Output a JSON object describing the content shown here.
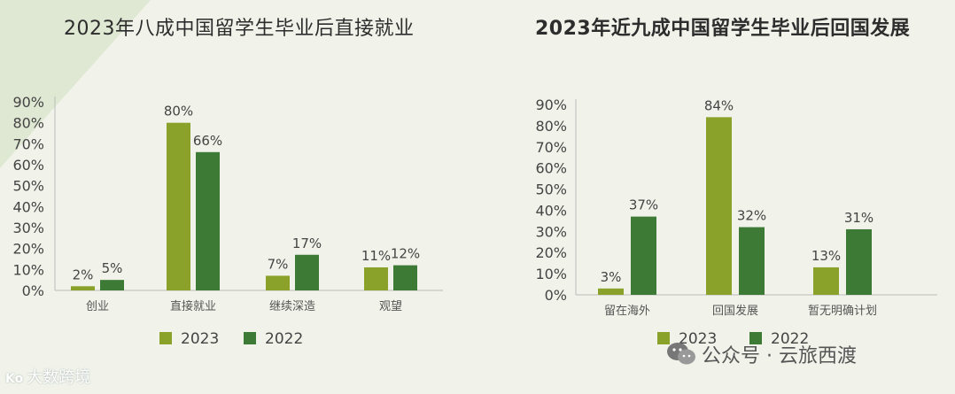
{
  "chart_data": [
    {
      "type": "bar",
      "title": "2023年八成中国留学生毕业后直接就业",
      "categories": [
        "创业",
        "直接就业",
        "继续深造",
        "观望"
      ],
      "series": [
        {
          "name": "2023",
          "values": [
            2,
            80,
            7,
            11
          ],
          "color": "#8aa12a"
        },
        {
          "name": "2022",
          "values": [
            5,
            66,
            17,
            12
          ],
          "color": "#3d7a35"
        }
      ],
      "data_labels": [
        [
          "2%",
          "80%",
          "7%",
          "11%"
        ],
        [
          "5%",
          "66%",
          "17%",
          "12%"
        ]
      ],
      "yticks": [
        "0%",
        "10%",
        "20%",
        "30%",
        "40%",
        "50%",
        "60%",
        "70%",
        "80%",
        "90%"
      ],
      "ylim": [
        0,
        90
      ],
      "xlabel": "",
      "ylabel": "",
      "legend": "bottom"
    },
    {
      "type": "bar",
      "title": "2023年近九成中国留学生毕业后回国发展",
      "categories": [
        "留在海外",
        "回国发展",
        "暂无明确计划"
      ],
      "series": [
        {
          "name": "2023",
          "values": [
            3,
            84,
            13
          ],
          "color": "#8aa12a"
        },
        {
          "name": "2022",
          "values": [
            37,
            32,
            31
          ],
          "color": "#3d7a35"
        }
      ],
      "data_labels": [
        [
          "3%",
          "84%",
          "13%"
        ],
        [
          "37%",
          "32%",
          "31%"
        ]
      ],
      "yticks": [
        "0%",
        "10%",
        "20%",
        "30%",
        "40%",
        "50%",
        "60%",
        "70%",
        "80%",
        "90%"
      ],
      "ylim": [
        0,
        90
      ],
      "xlabel": "",
      "ylabel": "",
      "legend": "bottom"
    }
  ],
  "watermarks": {
    "left_logo": "Ko",
    "left_text": "大数跨境",
    "right_text": "公众号 · 云旅西渡",
    "right_icon": "wechat-icon"
  }
}
